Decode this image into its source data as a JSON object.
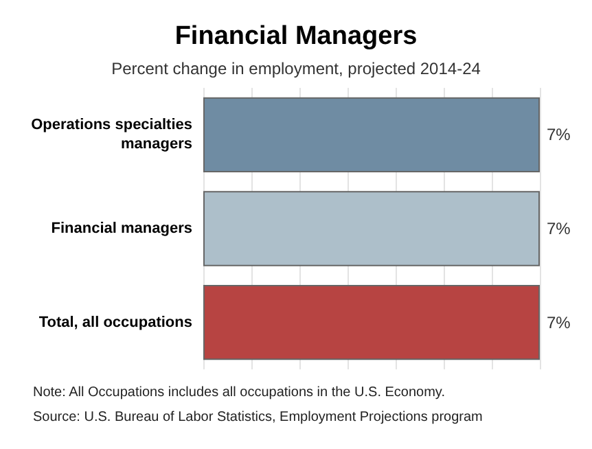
{
  "chart_data": {
    "type": "bar",
    "orientation": "horizontal",
    "title": "Financial Managers",
    "subtitle": "Percent change in employment, projected 2014-24",
    "categories": [
      "Operations specialties managers",
      "Financial managers",
      "Total, all occupations"
    ],
    "values": [
      7,
      7,
      7
    ],
    "colors": [
      "#6f8ca3",
      "#adbfca",
      "#b74442"
    ],
    "value_labels": [
      "7%",
      "7%",
      "7%"
    ],
    "grid": "x",
    "annotations": [
      "Note: All Occupations includes all occupations in the U.S. Economy.",
      "Source: U.S. Bureau of Labor Statistics, Employment Projections program"
    ]
  }
}
